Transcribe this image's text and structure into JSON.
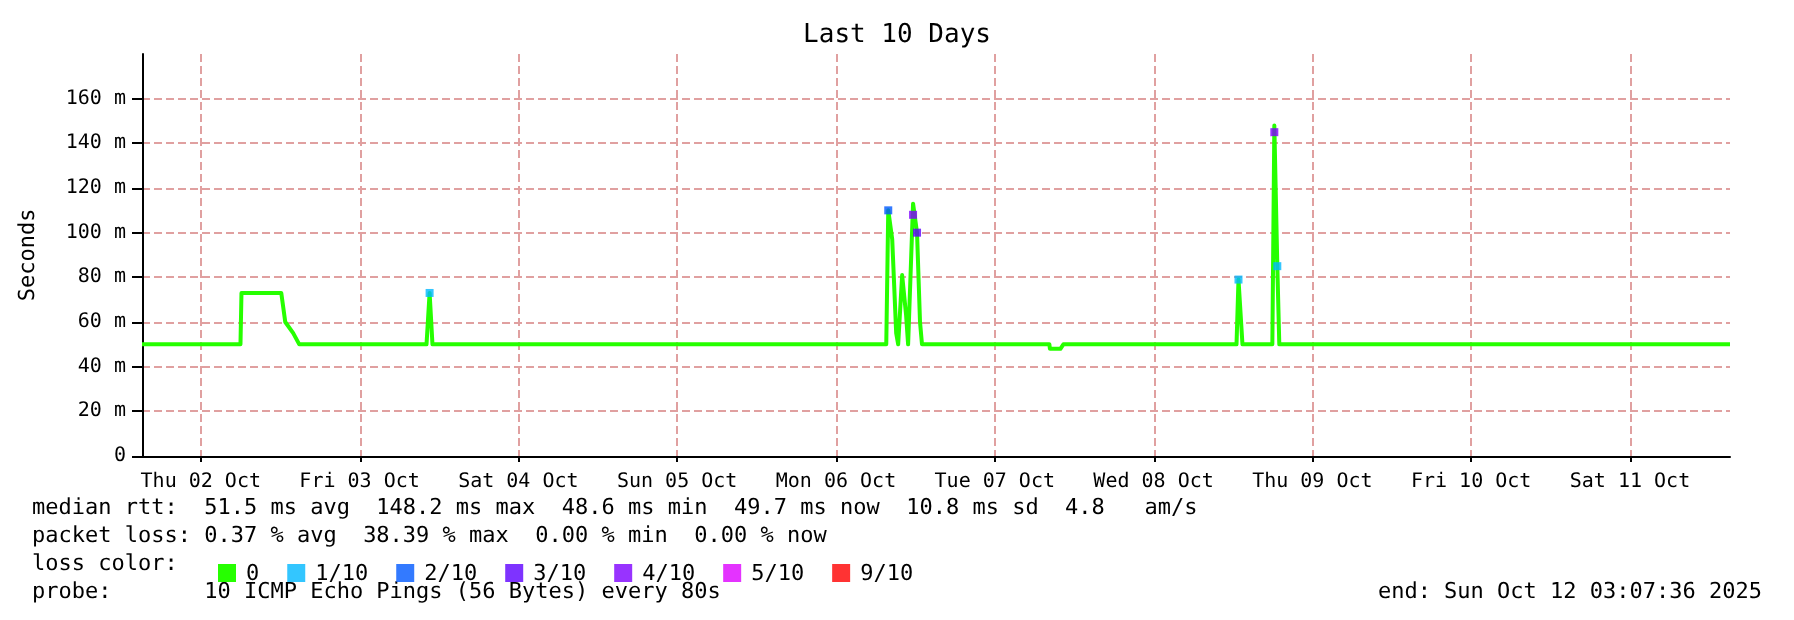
{
  "chart_data": {
    "type": "line",
    "title": "Last 10 Days",
    "ylabel": "Seconds",
    "legend_title": "loss color:",
    "legend": "bottom",
    "grid": true,
    "line_style": "solid",
    "xlim": [
      "2025-10-02T03:07",
      "2025-10-12T03:07"
    ],
    "xticks": [
      {
        "value": "2025-10-02T12:00",
        "label": "Thu 02 Oct"
      },
      {
        "value": "2025-10-03T12:00",
        "label": "Fri 03 Oct"
      },
      {
        "value": "2025-10-04T12:00",
        "label": "Sat 04 Oct"
      },
      {
        "value": "2025-10-05T12:00",
        "label": "Sun 05 Oct"
      },
      {
        "value": "2025-10-06T12:00",
        "label": "Mon 06 Oct"
      },
      {
        "value": "2025-10-07T12:00",
        "label": "Tue 07 Oct"
      },
      {
        "value": "2025-10-08T12:00",
        "label": "Wed 08 Oct"
      },
      {
        "value": "2025-10-09T12:00",
        "label": "Thu 09 Oct"
      },
      {
        "value": "2025-10-10T12:00",
        "label": "Fri 10 Oct"
      },
      {
        "value": "2025-10-11T12:00",
        "label": "Sat 11 Oct"
      }
    ],
    "ylim": [
      0,
      180
    ],
    "yticks": [
      0,
      {
        "value": 20,
        "label": "20 m"
      },
      {
        "value": 40,
        "label": "40 m"
      },
      {
        "value": 60,
        "label": "60 m"
      },
      {
        "value": 80,
        "label": "80 m"
      },
      {
        "value": 100,
        "label": "100 m"
      },
      {
        "value": 120,
        "label": "120 m"
      },
      {
        "value": 140,
        "label": "140 m"
      },
      {
        "value": 160,
        "label": "160 m"
      }
    ],
    "series": [
      {
        "name": "0",
        "color": "#26ff00",
        "x": [
          "2025-10-02T03:07",
          "2025-10-02T18:00",
          "2025-10-02T18:09",
          "2025-10-03T00:10",
          "2025-10-03T00:46",
          "2025-10-03T01:58",
          "2025-10-03T02:53",
          "2025-10-03T22:07",
          "2025-10-03T22:35",
          "2025-10-03T23:01",
          "2025-10-06T19:36",
          "2025-10-06T19:54",
          "2025-10-06T20:30",
          "2025-10-06T21:06",
          "2025-10-06T21:24",
          "2025-10-06T22:00",
          "2025-10-06T22:36",
          "2025-10-06T22:54",
          "2025-10-06T23:39",
          "2025-10-07T00:15",
          "2025-10-07T00:42",
          "2025-10-07T01:00",
          "2025-10-07T20:15",
          "2025-10-07T20:20",
          "2025-10-07T21:55",
          "2025-10-07T22:22",
          "2025-10-09T00:32",
          "2025-10-09T00:50",
          "2025-10-09T01:26",
          "2025-10-09T05:57",
          "2025-10-09T06:15",
          "2025-10-09T06:42",
          "2025-10-09T07:00",
          "2025-10-12T03:07"
        ],
        "values": [
          50,
          50,
          73,
          73,
          60,
          55,
          50,
          50,
          73,
          50,
          50,
          110,
          97,
          55,
          50,
          81,
          63,
          50,
          113,
          100,
          60,
          50,
          50,
          48,
          48,
          50,
          50,
          79,
          50,
          50,
          148,
          85,
          50,
          50
        ]
      },
      {
        "name": "1/10",
        "color": "#00b8ff",
        "type": "scatter",
        "marker": "square",
        "x": [
          "2025-10-03T22:35",
          "2025-10-09T00:50",
          "2025-10-09T06:42"
        ],
        "values": [
          73,
          79,
          85
        ]
      },
      {
        "name": "2/10",
        "color": "#0059ff",
        "type": "scatter",
        "marker": "square",
        "x": [
          "2025-10-06T19:54"
        ],
        "values": [
          110
        ]
      },
      {
        "name": "3/10",
        "color": "#5e00ff",
        "type": "scatter",
        "marker": "square",
        "x": [
          "2025-10-07T00:15"
        ],
        "values": [
          100
        ]
      },
      {
        "name": "4/10",
        "color": "#7e00ff",
        "type": "scatter",
        "marker": "square",
        "x": [
          "2025-10-06T23:39",
          "2025-10-09T06:15"
        ],
        "values": [
          108,
          145
        ]
      },
      {
        "name": "5/10",
        "color": "#dd00ff",
        "type": "scatter",
        "marker": "square"
      },
      {
        "name": "9/10",
        "color": "#ff0000",
        "type": "scatter",
        "marker": "square"
      }
    ],
    "annotations": [
      "median rtt:  51.5 ms avg  148.2 ms max  48.6 ms min  49.7 ms now  10.8 ms sd  4.8   am/s",
      "packet loss: 0.37 % avg  38.39 % max  0.00 % min  0.00 % now",
      "probe:       10 ICMP Echo Pings (56 Bytes) every 80s",
      "end: Sun Oct 12 03:07:36 2025"
    ]
  }
}
